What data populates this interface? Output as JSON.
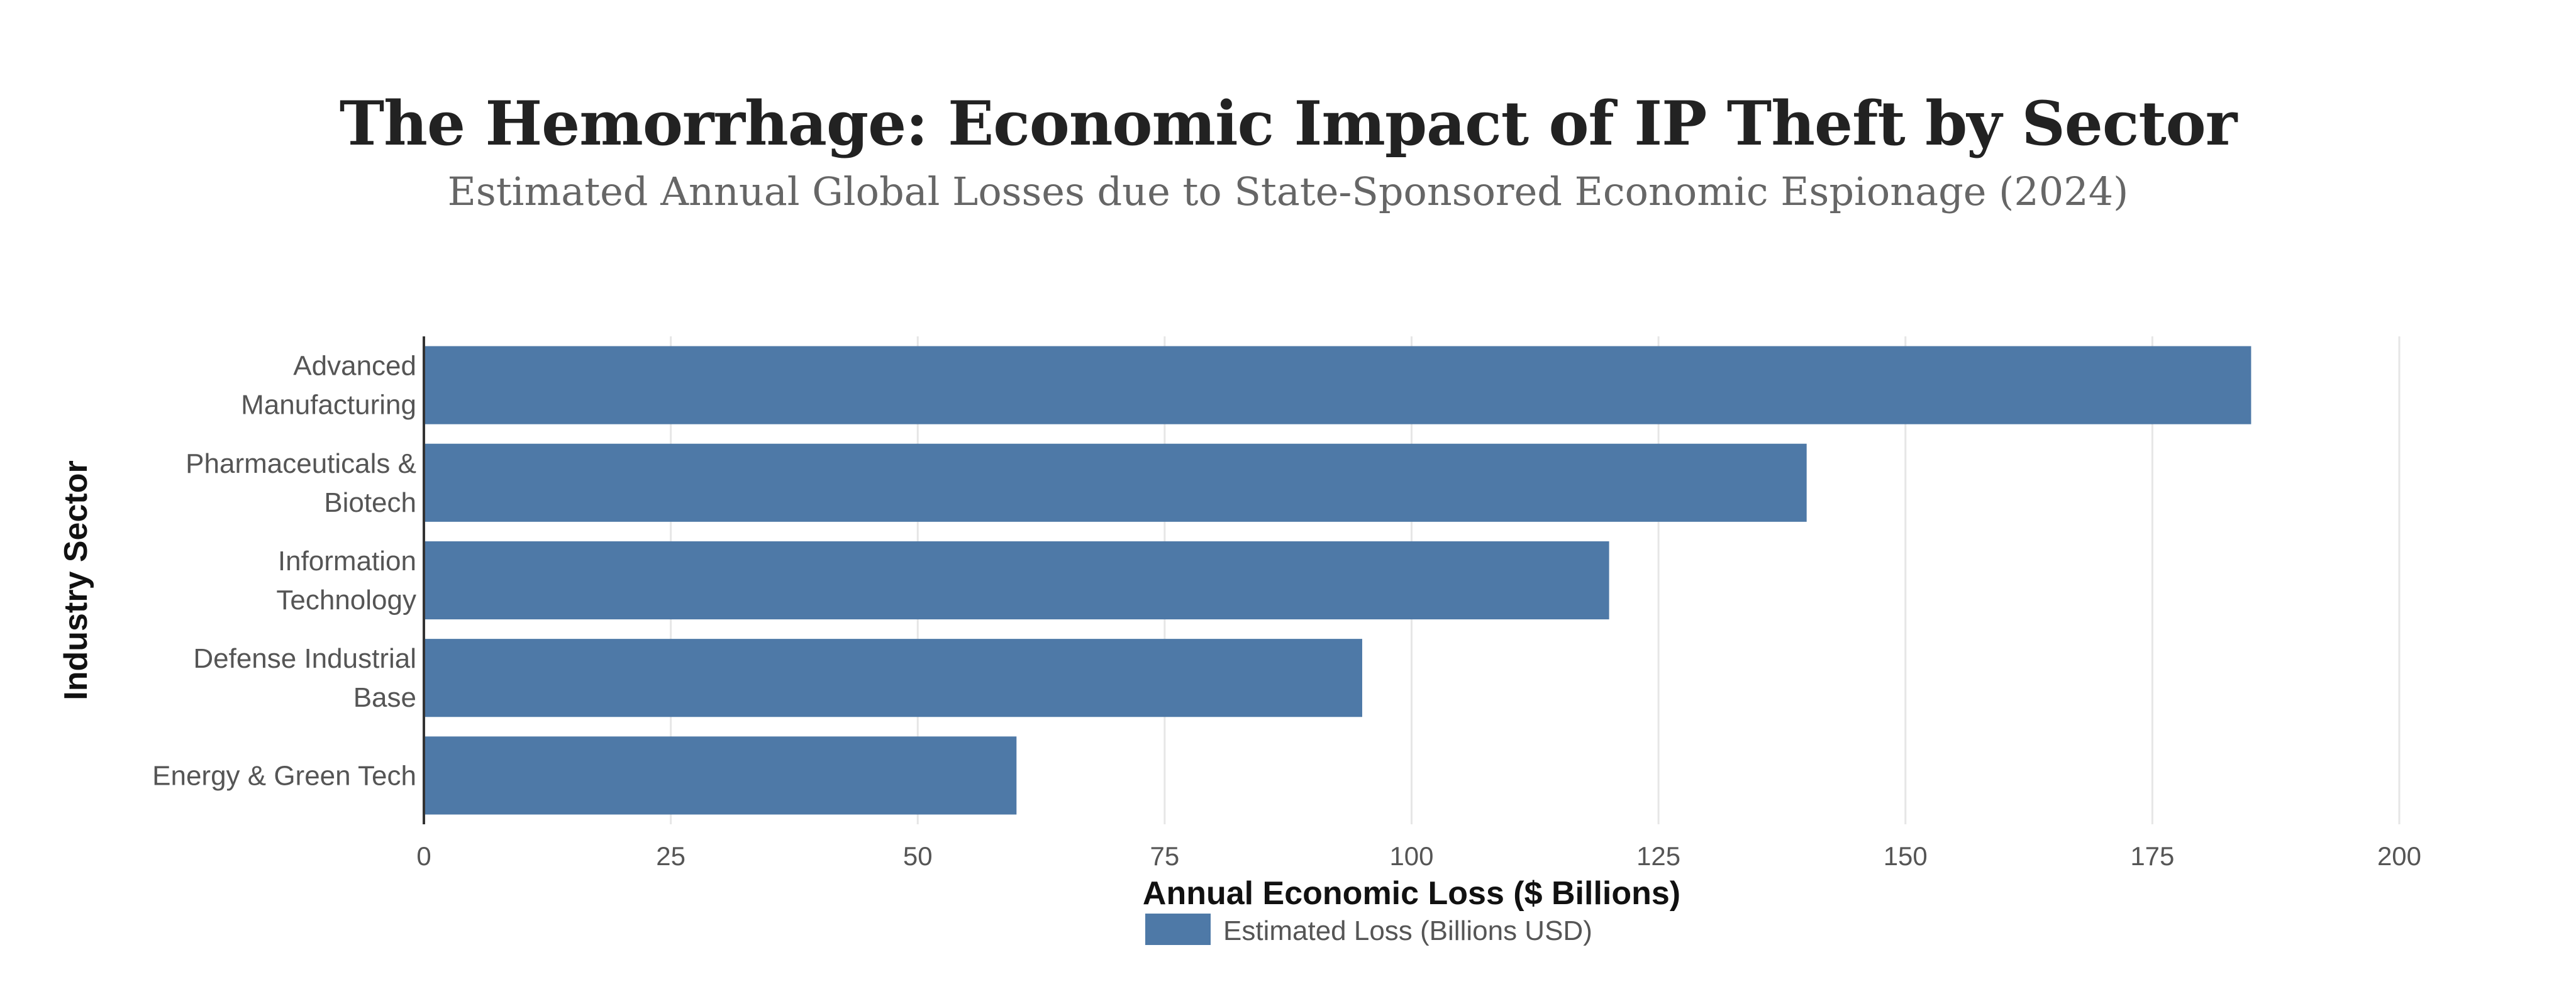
{
  "chart_data": {
    "type": "bar",
    "orientation": "horizontal",
    "title": "The Hemorrhage: Economic Impact of IP Theft by Sector",
    "subtitle": "Estimated Annual Global Losses due to State-Sponsored Economic Espionage (2024)",
    "categories": [
      [
        "Advanced",
        "Manufacturing"
      ],
      [
        "Pharmaceuticals &",
        "Biotech"
      ],
      [
        "Information",
        "Technology"
      ],
      [
        "Defense Industrial",
        "Base"
      ],
      [
        "Energy & Green Tech"
      ]
    ],
    "series": [
      {
        "name": "Estimated Loss (Billions USD)",
        "values": [
          185,
          140,
          120,
          95,
          60
        ],
        "color": "#4e79a7"
      }
    ],
    "xlabel": "Annual Economic Loss ($ Billions)",
    "ylabel": "Industry Sector",
    "xlim": [
      0,
      200
    ],
    "xticks": [
      0,
      25,
      50,
      75,
      100,
      125,
      150,
      175,
      200
    ],
    "grid": true,
    "legend_position": "bottom-center"
  }
}
